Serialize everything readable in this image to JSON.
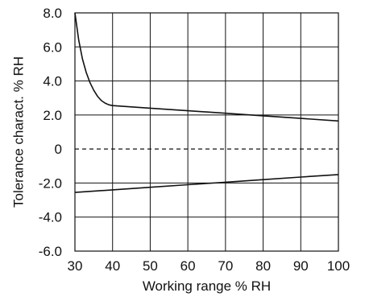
{
  "chart_data": {
    "type": "line",
    "title": "",
    "xlabel": "Working range % RH",
    "ylabel": "Tolerance charact. % RH",
    "xlim": [
      30,
      100
    ],
    "ylim": [
      -6.0,
      8.0
    ],
    "x_ticks": [
      30,
      40,
      50,
      60,
      70,
      80,
      90,
      100
    ],
    "x_tick_labels": [
      "30",
      "40",
      "50",
      "60",
      "70",
      "80",
      "90",
      "100"
    ],
    "y_ticks": [
      8.0,
      6.0,
      4.0,
      2.0,
      0,
      -2.0,
      -4.0,
      -6.0
    ],
    "y_tick_labels": [
      "8.0",
      "6.0",
      "4.0",
      "2.0",
      "0",
      "-2.0",
      "-4.0",
      "-6.0"
    ],
    "grid": true,
    "reference_line": {
      "y": 0,
      "style": "dashed"
    },
    "series": [
      {
        "x": [
          30,
          31,
          32,
          33,
          34,
          35,
          36,
          37,
          38,
          39,
          40,
          50,
          60,
          70,
          80,
          90,
          100
        ],
        "values": [
          8.0,
          6.4,
          5.3,
          4.5,
          3.9,
          3.45,
          3.1,
          2.85,
          2.7,
          2.6,
          2.55,
          2.4,
          2.25,
          2.1,
          1.95,
          1.8,
          1.65
        ]
      },
      {
        "x": [
          30,
          40,
          50,
          60,
          70,
          80,
          90,
          100
        ],
        "values": [
          -2.55,
          -2.4,
          -2.25,
          -2.1,
          -1.95,
          -1.8,
          -1.65,
          -1.5
        ]
      }
    ]
  }
}
